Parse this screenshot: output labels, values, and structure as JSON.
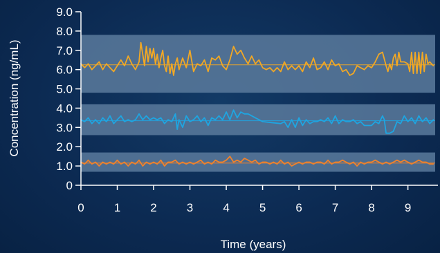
{
  "chart_data": {
    "type": "line",
    "title": "",
    "xlabel": "Time (years)",
    "ylabel": "Concentration (ng/mL)",
    "xlim": [
      0,
      9.75
    ],
    "ylim": [
      0,
      9.0
    ],
    "x_ticks": [
      0,
      1,
      2,
      3,
      4,
      5,
      6,
      7,
      8,
      9
    ],
    "y_ticks": [
      {
        "value": 0,
        "label": "0"
      },
      {
        "value": 1,
        "label": "1.0"
      },
      {
        "value": 2,
        "label": "2.0"
      },
      {
        "value": 3,
        "label": "3.0"
      },
      {
        "value": 4,
        "label": "4.0"
      },
      {
        "value": 5,
        "label": "5.0"
      },
      {
        "value": 6,
        "label": "6.0"
      },
      {
        "value": 7,
        "label": "7.0"
      },
      {
        "value": 8,
        "label": "8.0"
      },
      {
        "value": 9,
        "label": "9.0"
      }
    ],
    "grid": false,
    "legend": "none",
    "bands": [
      {
        "y0": 4.8,
        "y1": 7.8,
        "color": "#5a7a9c"
      },
      {
        "y0": 2.6,
        "y1": 4.2,
        "color": "#5a7a9c"
      },
      {
        "y0": 0.7,
        "y1": 1.7,
        "color": "#5a7a9c"
      }
    ],
    "series": [
      {
        "color": "#f2a824",
        "mean": 6.25,
        "points": [
          [
            0.0,
            6.3
          ],
          [
            0.1,
            6.1
          ],
          [
            0.2,
            6.3
          ],
          [
            0.3,
            6.0
          ],
          [
            0.4,
            6.2
          ],
          [
            0.5,
            6.4
          ],
          [
            0.6,
            6.0
          ],
          [
            0.7,
            6.3
          ],
          [
            0.8,
            6.1
          ],
          [
            0.9,
            5.9
          ],
          [
            1.0,
            6.2
          ],
          [
            1.1,
            6.5
          ],
          [
            1.2,
            6.2
          ],
          [
            1.3,
            6.7
          ],
          [
            1.4,
            6.3
          ],
          [
            1.5,
            6.0
          ],
          [
            1.6,
            6.4
          ],
          [
            1.65,
            7.4
          ],
          [
            1.7,
            6.8
          ],
          [
            1.75,
            6.2
          ],
          [
            1.8,
            7.2
          ],
          [
            1.85,
            6.4
          ],
          [
            1.9,
            7.1
          ],
          [
            1.95,
            6.6
          ],
          [
            2.0,
            7.1
          ],
          [
            2.05,
            6.3
          ],
          [
            2.1,
            6.8
          ],
          [
            2.15,
            6.1
          ],
          [
            2.2,
            6.6
          ],
          [
            2.25,
            7.0
          ],
          [
            2.3,
            6.2
          ],
          [
            2.35,
            5.9
          ],
          [
            2.4,
            6.7
          ],
          [
            2.45,
            5.8
          ],
          [
            2.5,
            6.3
          ],
          [
            2.55,
            5.7
          ],
          [
            2.6,
            6.3
          ],
          [
            2.65,
            6.6
          ],
          [
            2.7,
            6.0
          ],
          [
            2.8,
            6.6
          ],
          [
            2.9,
            6.1
          ],
          [
            3.0,
            7.0
          ],
          [
            3.1,
            5.9
          ],
          [
            3.2,
            6.3
          ],
          [
            3.3,
            6.2
          ],
          [
            3.4,
            6.5
          ],
          [
            3.5,
            5.9
          ],
          [
            3.6,
            6.6
          ],
          [
            3.7,
            6.5
          ],
          [
            3.8,
            6.7
          ],
          [
            3.9,
            6.2
          ],
          [
            4.0,
            6.0
          ],
          [
            4.1,
            6.5
          ],
          [
            4.2,
            7.2
          ],
          [
            4.3,
            6.8
          ],
          [
            4.4,
            7.0
          ],
          [
            4.5,
            6.6
          ],
          [
            4.6,
            6.3
          ],
          [
            4.7,
            6.7
          ],
          [
            4.8,
            6.3
          ],
          [
            4.9,
            6.5
          ],
          [
            5.0,
            6.1
          ],
          [
            5.1,
            6.0
          ],
          [
            5.2,
            6.1
          ],
          [
            5.3,
            5.9
          ],
          [
            5.4,
            6.1
          ],
          [
            5.5,
            5.9
          ],
          [
            5.6,
            6.4
          ],
          [
            5.7,
            6.0
          ],
          [
            5.8,
            6.2
          ],
          [
            5.9,
            6.0
          ],
          [
            6.0,
            6.2
          ],
          [
            6.1,
            5.9
          ],
          [
            6.2,
            6.4
          ],
          [
            6.3,
            6.1
          ],
          [
            6.4,
            6.6
          ],
          [
            6.5,
            6.0
          ],
          [
            6.6,
            6.1
          ],
          [
            6.7,
            6.4
          ],
          [
            6.8,
            6.0
          ],
          [
            6.9,
            6.5
          ],
          [
            7.0,
            6.2
          ],
          [
            7.1,
            6.3
          ],
          [
            7.2,
            5.9
          ],
          [
            7.3,
            6.0
          ],
          [
            7.4,
            5.7
          ],
          [
            7.5,
            5.8
          ],
          [
            7.6,
            6.2
          ],
          [
            7.7,
            6.1
          ],
          [
            7.8,
            6.0
          ],
          [
            7.9,
            6.2
          ],
          [
            8.0,
            6.1
          ],
          [
            8.1,
            6.4
          ],
          [
            8.2,
            6.8
          ],
          [
            8.3,
            6.9
          ],
          [
            8.4,
            6.2
          ],
          [
            8.45,
            5.9
          ],
          [
            8.5,
            6.3
          ],
          [
            8.55,
            6.0
          ],
          [
            8.6,
            6.6
          ],
          [
            8.65,
            6.8
          ],
          [
            8.7,
            6.2
          ],
          [
            8.75,
            6.9
          ],
          [
            8.8,
            6.4
          ],
          [
            8.9,
            6.4
          ],
          [
            9.0,
            6.3
          ],
          [
            9.05,
            5.9
          ],
          [
            9.1,
            6.9
          ],
          [
            9.15,
            5.8
          ],
          [
            9.2,
            6.9
          ],
          [
            9.25,
            5.8
          ],
          [
            9.3,
            6.9
          ],
          [
            9.35,
            5.8
          ],
          [
            9.4,
            6.9
          ],
          [
            9.45,
            5.9
          ],
          [
            9.5,
            6.8
          ],
          [
            9.55,
            6.3
          ],
          [
            9.6,
            6.4
          ],
          [
            9.7,
            6.2
          ]
        ]
      },
      {
        "color": "#1ea6e2",
        "mean": 3.35,
        "points": [
          [
            0.0,
            3.4
          ],
          [
            0.1,
            3.3
          ],
          [
            0.2,
            3.5
          ],
          [
            0.3,
            3.2
          ],
          [
            0.4,
            3.4
          ],
          [
            0.5,
            3.2
          ],
          [
            0.6,
            3.5
          ],
          [
            0.7,
            3.3
          ],
          [
            0.8,
            3.6
          ],
          [
            0.9,
            3.2
          ],
          [
            1.0,
            3.4
          ],
          [
            1.1,
            3.6
          ],
          [
            1.2,
            3.3
          ],
          [
            1.3,
            3.4
          ],
          [
            1.4,
            3.3
          ],
          [
            1.5,
            3.4
          ],
          [
            1.6,
            3.7
          ],
          [
            1.7,
            3.4
          ],
          [
            1.8,
            3.6
          ],
          [
            1.9,
            3.4
          ],
          [
            2.0,
            3.5
          ],
          [
            2.1,
            3.4
          ],
          [
            2.2,
            3.5
          ],
          [
            2.3,
            3.2
          ],
          [
            2.4,
            3.4
          ],
          [
            2.5,
            3.3
          ],
          [
            2.6,
            3.7
          ],
          [
            2.65,
            2.9
          ],
          [
            2.7,
            3.4
          ],
          [
            2.8,
            3.0
          ],
          [
            2.9,
            3.6
          ],
          [
            3.0,
            3.3
          ],
          [
            3.1,
            3.4
          ],
          [
            3.2,
            3.6
          ],
          [
            3.3,
            3.3
          ],
          [
            3.4,
            3.5
          ],
          [
            3.5,
            3.1
          ],
          [
            3.6,
            3.5
          ],
          [
            3.7,
            3.4
          ],
          [
            3.8,
            3.6
          ],
          [
            3.9,
            3.4
          ],
          [
            4.0,
            3.8
          ],
          [
            4.1,
            3.4
          ],
          [
            4.2,
            3.9
          ],
          [
            4.3,
            3.5
          ],
          [
            4.4,
            3.8
          ],
          [
            4.5,
            3.7
          ],
          [
            4.6,
            3.7
          ],
          [
            4.7,
            3.6
          ],
          [
            4.8,
            3.5
          ],
          [
            4.9,
            3.4
          ],
          [
            5.0,
            3.3
          ],
          [
            5.5,
            3.2
          ],
          [
            5.6,
            3.3
          ],
          [
            5.7,
            3.0
          ],
          [
            5.8,
            3.4
          ],
          [
            5.9,
            3.0
          ],
          [
            6.0,
            3.5
          ],
          [
            6.1,
            3.1
          ],
          [
            6.2,
            3.4
          ],
          [
            6.3,
            3.2
          ],
          [
            6.4,
            3.3
          ],
          [
            6.5,
            3.3
          ],
          [
            6.6,
            3.4
          ],
          [
            6.7,
            3.3
          ],
          [
            6.8,
            3.5
          ],
          [
            6.9,
            3.2
          ],
          [
            7.0,
            3.6
          ],
          [
            7.1,
            3.2
          ],
          [
            7.2,
            3.4
          ],
          [
            7.3,
            3.3
          ],
          [
            7.4,
            3.3
          ],
          [
            7.5,
            3.4
          ],
          [
            7.6,
            3.2
          ],
          [
            7.7,
            3.3
          ],
          [
            7.8,
            3.1
          ],
          [
            7.9,
            3.1
          ],
          [
            8.0,
            3.1
          ],
          [
            8.1,
            3.3
          ],
          [
            8.2,
            3.2
          ],
          [
            8.3,
            3.6
          ],
          [
            8.35,
            3.4
          ],
          [
            8.4,
            2.7
          ],
          [
            8.5,
            2.7
          ],
          [
            8.6,
            2.8
          ],
          [
            8.7,
            3.3
          ],
          [
            8.8,
            3.2
          ],
          [
            8.9,
            3.6
          ],
          [
            9.0,
            3.3
          ],
          [
            9.1,
            3.5
          ],
          [
            9.2,
            3.2
          ],
          [
            9.3,
            3.6
          ],
          [
            9.4,
            3.3
          ],
          [
            9.5,
            3.5
          ],
          [
            9.6,
            3.2
          ],
          [
            9.7,
            3.4
          ]
        ]
      },
      {
        "color": "#f2822a",
        "mean": 1.15,
        "points": [
          [
            0.0,
            1.2
          ],
          [
            0.1,
            1.1
          ],
          [
            0.2,
            1.3
          ],
          [
            0.3,
            1.1
          ],
          [
            0.4,
            1.2
          ],
          [
            0.5,
            1.0
          ],
          [
            0.6,
            1.2
          ],
          [
            0.7,
            1.1
          ],
          [
            0.8,
            1.2
          ],
          [
            0.9,
            1.1
          ],
          [
            1.0,
            1.3
          ],
          [
            1.1,
            1.1
          ],
          [
            1.2,
            1.2
          ],
          [
            1.3,
            1.0
          ],
          [
            1.4,
            1.2
          ],
          [
            1.5,
            1.1
          ],
          [
            1.6,
            1.3
          ],
          [
            1.7,
            1.0
          ],
          [
            1.8,
            1.2
          ],
          [
            1.9,
            1.1
          ],
          [
            2.0,
            1.2
          ],
          [
            2.1,
            1.1
          ],
          [
            2.2,
            1.3
          ],
          [
            2.3,
            1.0
          ],
          [
            2.4,
            1.2
          ],
          [
            2.5,
            1.2
          ],
          [
            2.6,
            1.3
          ],
          [
            2.7,
            1.1
          ],
          [
            2.8,
            1.2
          ],
          [
            2.9,
            1.1
          ],
          [
            3.0,
            1.2
          ],
          [
            3.1,
            1.1
          ],
          [
            3.2,
            1.2
          ],
          [
            3.3,
            1.3
          ],
          [
            3.4,
            1.1
          ],
          [
            3.5,
            1.2
          ],
          [
            3.6,
            1.1
          ],
          [
            3.7,
            1.3
          ],
          [
            3.8,
            1.2
          ],
          [
            3.9,
            1.2
          ],
          [
            4.0,
            1.3
          ],
          [
            4.1,
            1.5
          ],
          [
            4.2,
            1.2
          ],
          [
            4.3,
            1.3
          ],
          [
            4.4,
            1.2
          ],
          [
            4.5,
            1.4
          ],
          [
            4.6,
            1.3
          ],
          [
            4.7,
            1.2
          ],
          [
            4.8,
            1.3
          ],
          [
            4.9,
            1.1
          ],
          [
            5.0,
            1.2
          ],
          [
            5.1,
            1.2
          ],
          [
            5.2,
            1.1
          ],
          [
            5.3,
            1.2
          ],
          [
            5.4,
            1.1
          ],
          [
            5.5,
            1.3
          ],
          [
            5.6,
            1.1
          ],
          [
            5.7,
            1.2
          ],
          [
            5.8,
            1.0
          ],
          [
            5.9,
            1.1
          ],
          [
            6.0,
            1.2
          ],
          [
            6.1,
            1.1
          ],
          [
            6.2,
            1.2
          ],
          [
            6.3,
            1.2
          ],
          [
            6.4,
            1.1
          ],
          [
            6.5,
            1.2
          ],
          [
            6.6,
            1.2
          ],
          [
            6.7,
            1.1
          ],
          [
            6.8,
            1.3
          ],
          [
            6.9,
            1.1
          ],
          [
            7.0,
            1.2
          ],
          [
            7.1,
            1.2
          ],
          [
            7.2,
            1.3
          ],
          [
            7.3,
            1.2
          ],
          [
            7.4,
            1.1
          ],
          [
            7.5,
            1.2
          ],
          [
            7.6,
            1.0
          ],
          [
            7.7,
            1.2
          ],
          [
            7.8,
            1.1
          ],
          [
            7.9,
            1.2
          ],
          [
            8.0,
            1.2
          ],
          [
            8.1,
            1.3
          ],
          [
            8.2,
            1.2
          ],
          [
            8.3,
            1.1
          ],
          [
            8.4,
            1.2
          ],
          [
            8.5,
            1.1
          ],
          [
            8.6,
            1.2
          ],
          [
            8.7,
            1.3
          ],
          [
            8.8,
            1.2
          ],
          [
            8.9,
            1.3
          ],
          [
            9.0,
            1.2
          ],
          [
            9.1,
            1.1
          ],
          [
            9.2,
            1.2
          ],
          [
            9.3,
            1.3
          ],
          [
            9.4,
            1.2
          ],
          [
            9.5,
            1.2
          ],
          [
            9.6,
            1.1
          ],
          [
            9.7,
            1.1
          ]
        ]
      }
    ]
  }
}
